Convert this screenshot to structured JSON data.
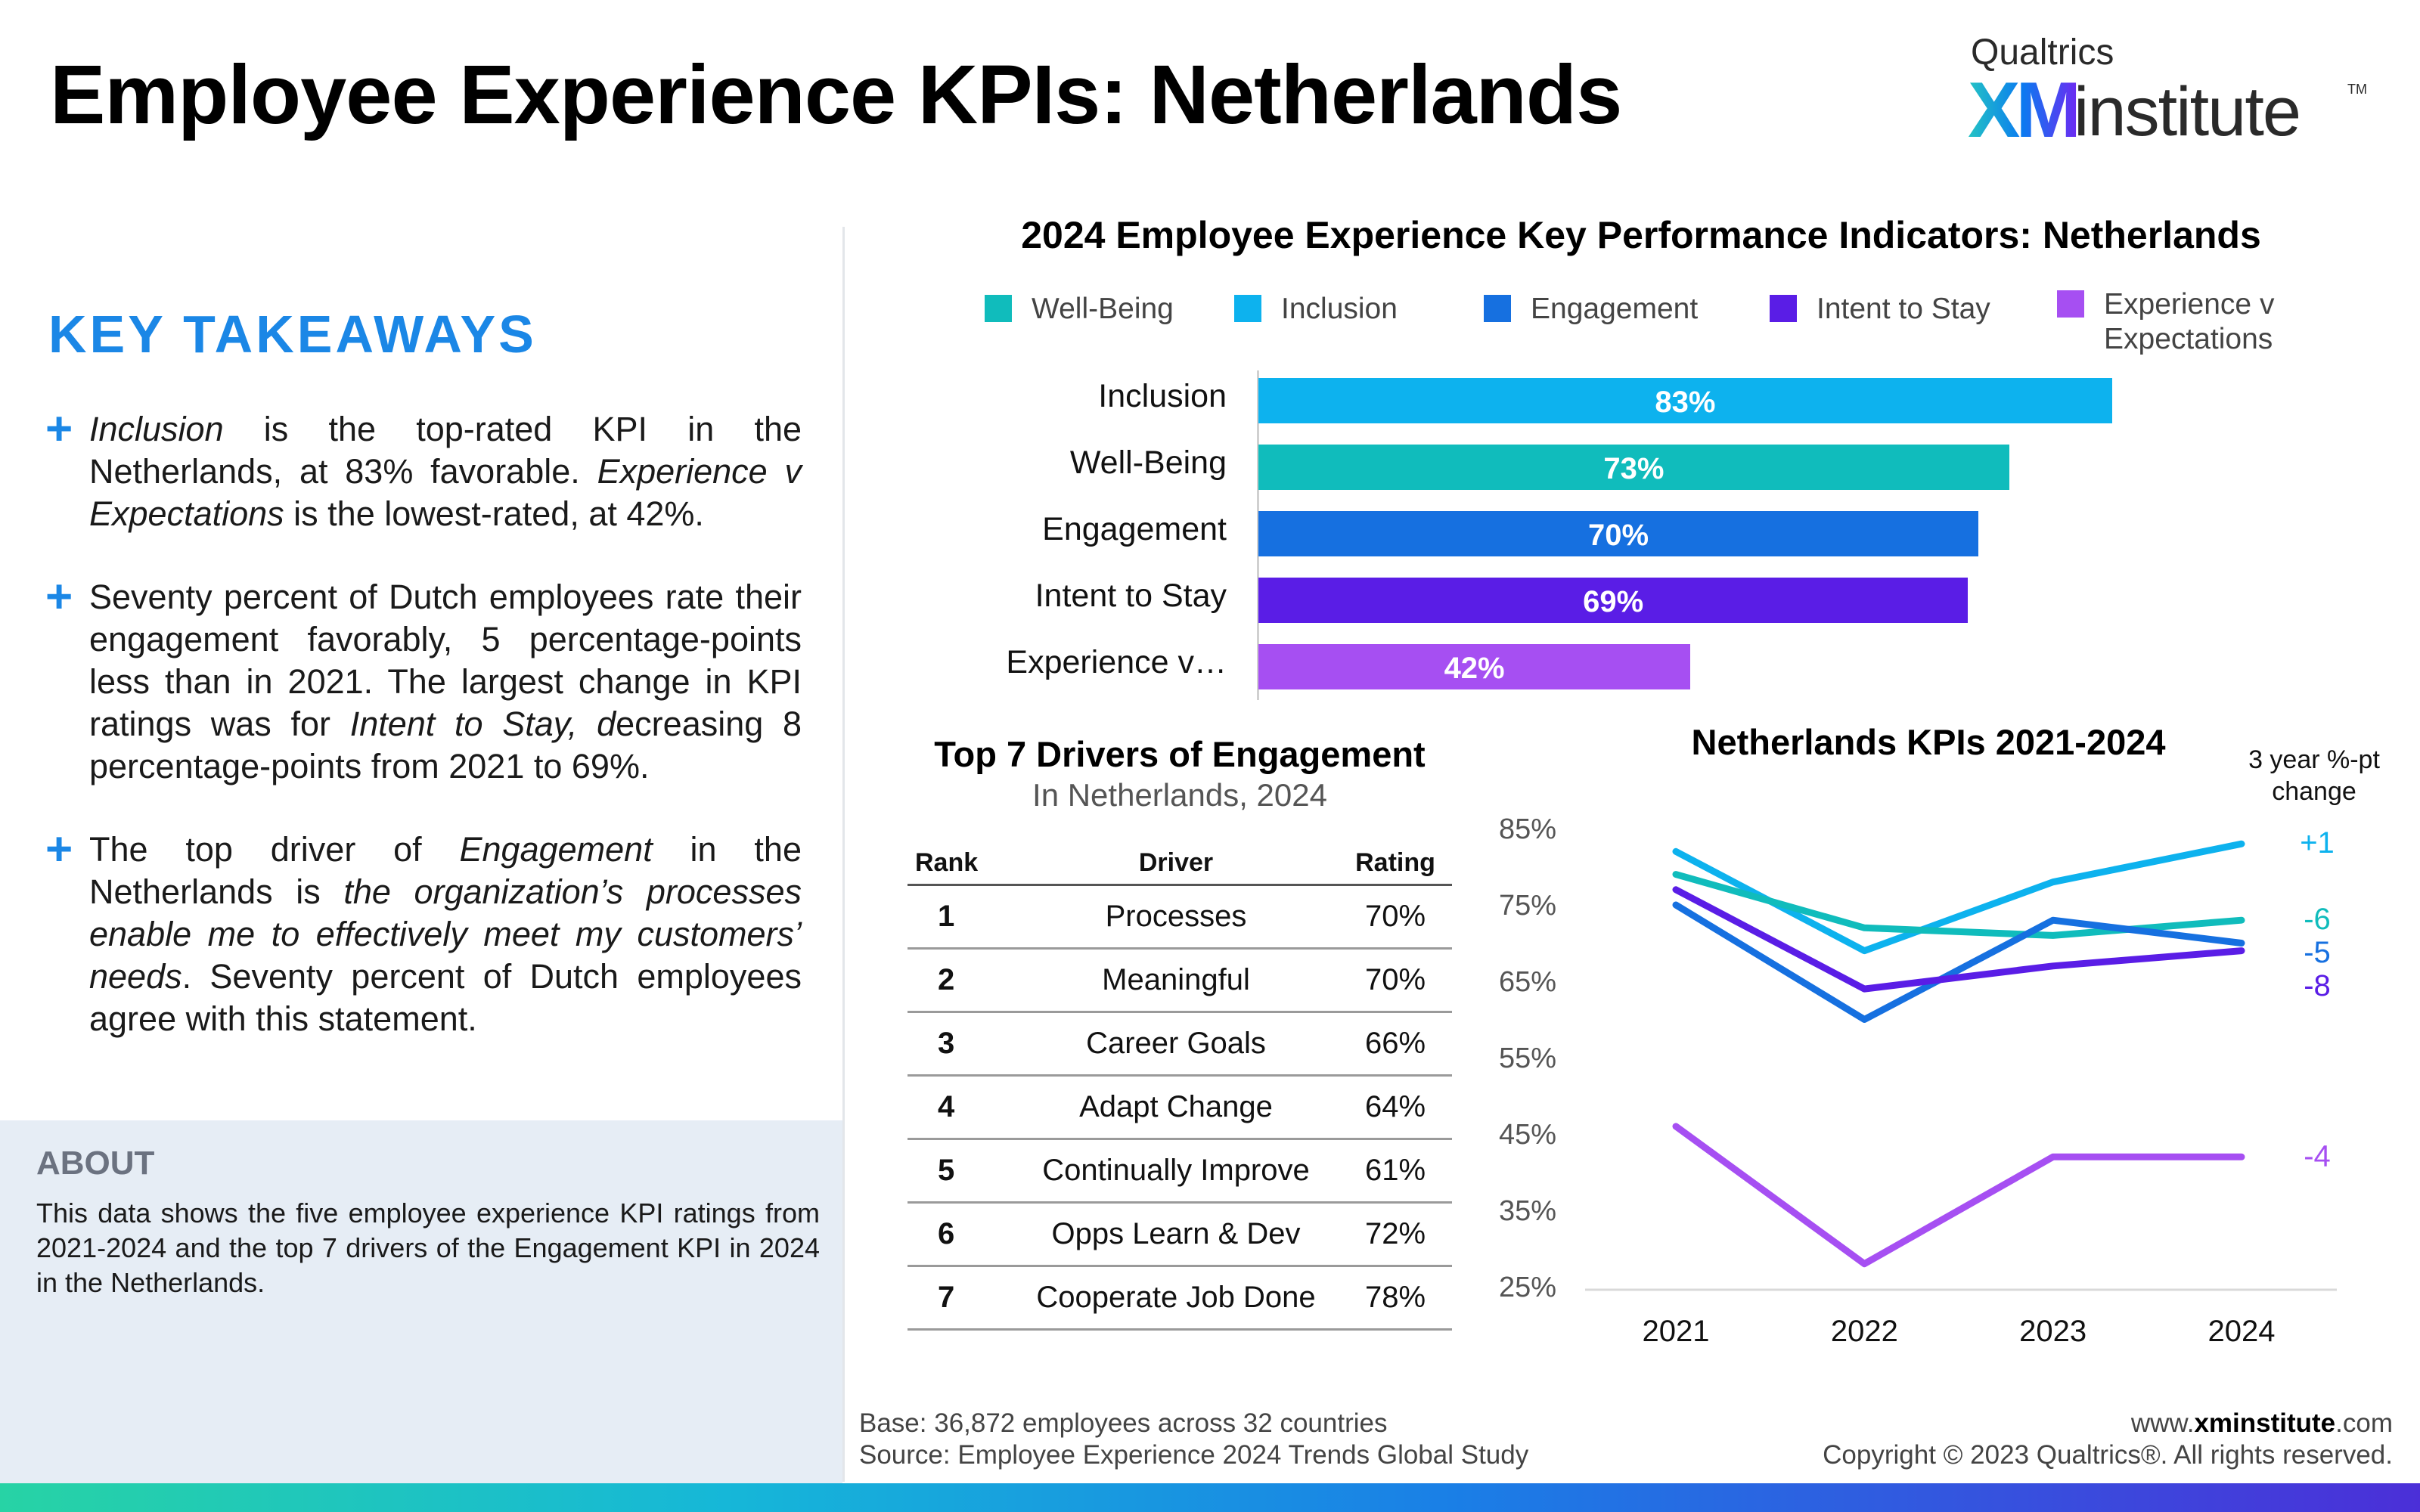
{
  "page": {
    "title": "Employee Experience KPIs: Netherlands"
  },
  "brand": {
    "top": "Qualtrics",
    "xm": "XM",
    "word": "institute",
    "tm": "TM"
  },
  "takeaways": {
    "heading": "KEY TAKEAWAYS",
    "items": [
      {
        "parts": [
          {
            "t": "Inclusion",
            "i": true
          },
          {
            "t": " is the top-rated KPI in the Netherlands, at 83% favorable. ",
            "i": false
          },
          {
            "t": "Experience v Expectations",
            "i": true
          },
          {
            "t": " is the lowest-rated, at 42%.",
            "i": false
          }
        ]
      },
      {
        "parts": [
          {
            "t": "Seventy percent of Dutch employees rate their engagement favorably, 5 percentage-points less than in 2021. The largest change in KPI ratings was for ",
            "i": false
          },
          {
            "t": "Intent to Stay, d",
            "i": true
          },
          {
            "t": "ecreasing 8 percentage-points from 2021 to 69%.",
            "i": false
          }
        ]
      },
      {
        "parts": [
          {
            "t": "The top driver of ",
            "i": false
          },
          {
            "t": "Engagement",
            "i": true
          },
          {
            "t": " in the Netherlands is ",
            "i": false
          },
          {
            "t": "the organization’s processes enable me to effectively meet my customers’ needs",
            "i": true
          },
          {
            "t": ". Seventy percent of Dutch employees agree with this statement.",
            "i": false
          }
        ]
      }
    ]
  },
  "about": {
    "heading": "ABOUT",
    "text": "This data shows the five employee experience KPI ratings from 2021-2024 and the top 7 drivers of the Engagement KPI in 2024 in the Netherlands."
  },
  "chart_data": [
    {
      "type": "bar",
      "orientation": "horizontal",
      "title": "2024 Employee Experience Key Performance Indicators: Netherlands",
      "legend": [
        "Well-Being",
        "Inclusion",
        "Engagement",
        "Intent to Stay",
        "Experience v Expectations"
      ],
      "legend_placement": "top",
      "categories": [
        "Inclusion",
        "Well-Being",
        "Engagement",
        "Intent to Stay",
        "Experience v…"
      ],
      "values": [
        83,
        73,
        70,
        69,
        42
      ],
      "value_labels": [
        "83%",
        "73%",
        "70%",
        "69%",
        "42%"
      ],
      "colors": [
        "#0db2ee",
        "#10bcbc",
        "#1670e0",
        "#5a1de6",
        "#a64ff2"
      ],
      "xlim": [
        0,
        100
      ]
    },
    {
      "type": "table",
      "title": "Top 7 Drivers of Engagement",
      "subtitle": "In Netherlands, 2024",
      "columns": [
        "Rank",
        "Driver",
        "Rating"
      ],
      "rows": [
        [
          "1",
          "Processes",
          "70%"
        ],
        [
          "2",
          "Meaningful",
          "70%"
        ],
        [
          "3",
          "Career Goals",
          "66%"
        ],
        [
          "4",
          "Adapt Change",
          "64%"
        ],
        [
          "5",
          "Continually Improve",
          "61%"
        ],
        [
          "6",
          "Opps Learn & Dev",
          "72%"
        ],
        [
          "7",
          "Cooperate Job Done",
          "78%"
        ]
      ]
    },
    {
      "type": "line",
      "title": "Netherlands KPIs 2021-2024",
      "x": [
        "2021",
        "2022",
        "2023",
        "2024"
      ],
      "yticks": [
        "85%",
        "75%",
        "65%",
        "55%",
        "45%",
        "35%",
        "25%"
      ],
      "ylim": [
        25,
        85
      ],
      "grid": false,
      "change_header": "3 year %-pt change",
      "series": [
        {
          "name": "Inclusion",
          "values": [
            82,
            69,
            78,
            83
          ],
          "change": "+1",
          "color": "#0db2ee"
        },
        {
          "name": "Well-Being",
          "values": [
            79,
            72,
            71,
            73
          ],
          "change": "-6",
          "color": "#10bcbc"
        },
        {
          "name": "Engagement",
          "values": [
            75,
            60,
            73,
            70
          ],
          "change": "-5",
          "color": "#1670e0"
        },
        {
          "name": "Intent to Stay",
          "values": [
            77,
            64,
            67,
            69
          ],
          "change": "-8",
          "color": "#5a1de6"
        },
        {
          "name": "Experience v Expectations",
          "values": [
            46,
            28,
            42,
            42
          ],
          "change": "-4",
          "color": "#a64ff2"
        }
      ]
    }
  ],
  "footer": {
    "base": "Base: 36,872 employees across 32 countries",
    "source": "Source: Employee Experience 2024 Trends Global Study",
    "url_prefix": "www.",
    "url_bold": "xminstitute",
    "url_suffix": ".com",
    "copyright": "Copyright © 2023 Qualtrics®. All rights reserved."
  }
}
